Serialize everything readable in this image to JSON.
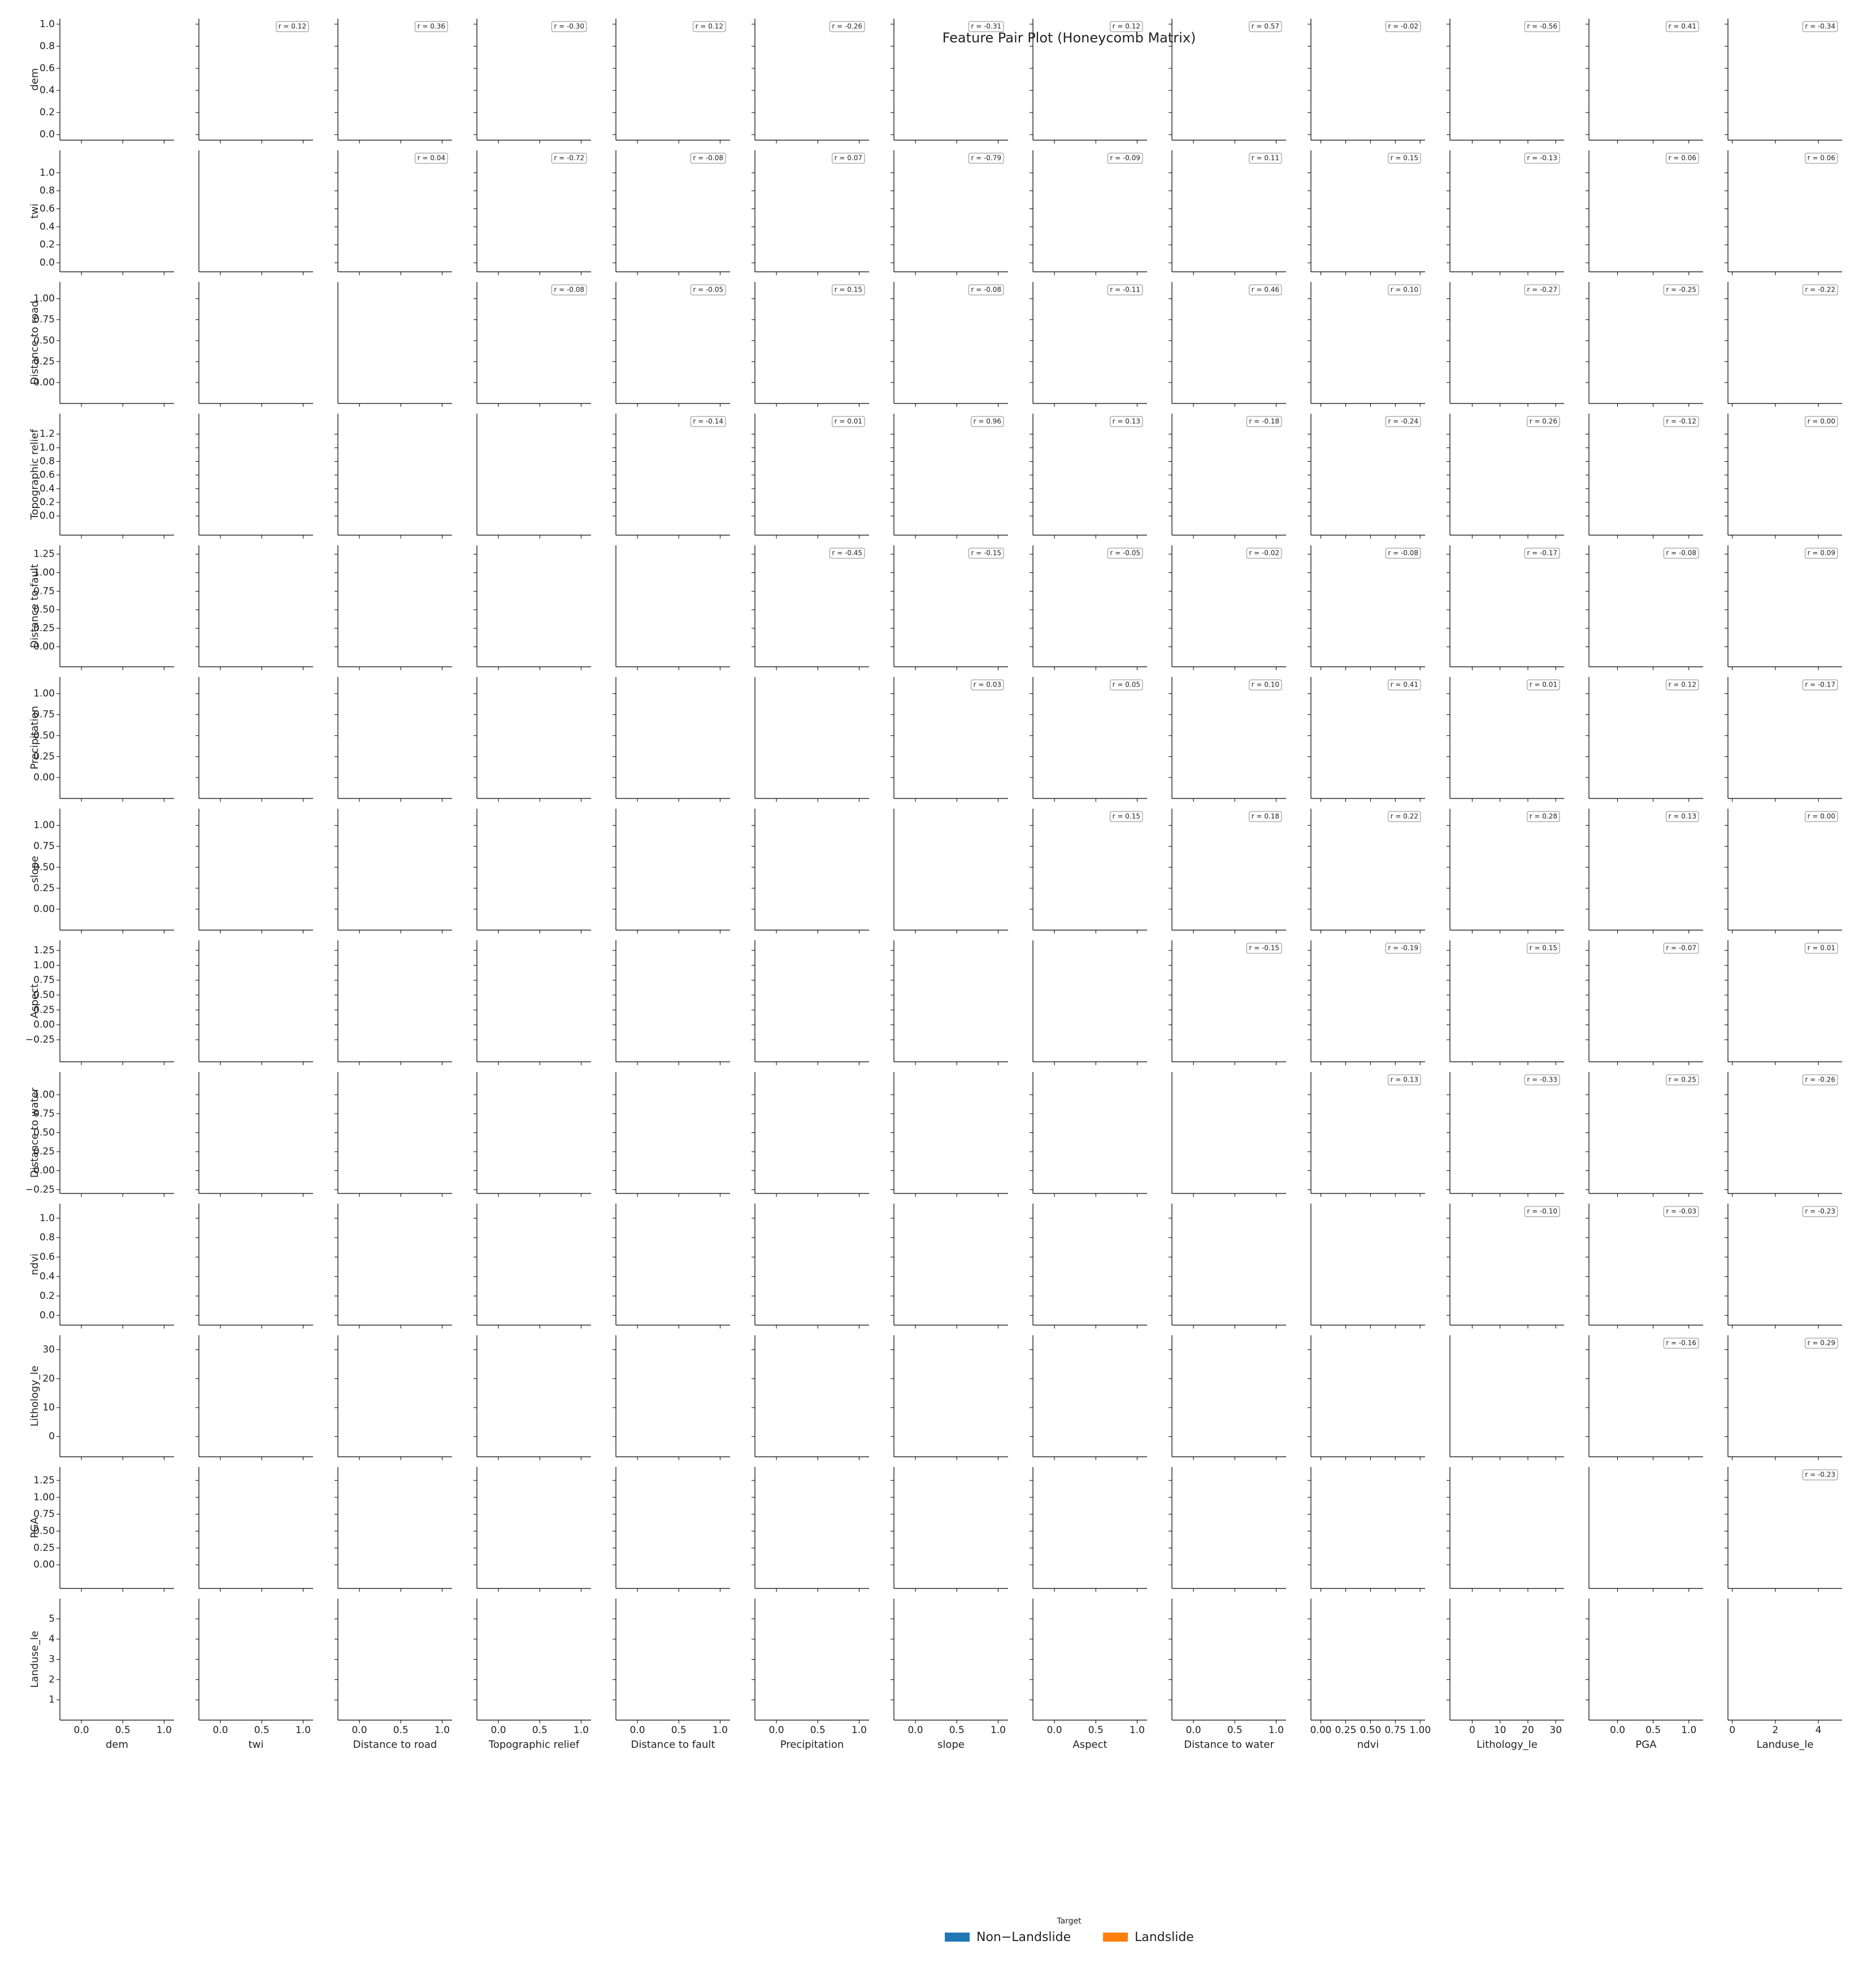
{
  "chart_data": {
    "type": "pairplot",
    "title": "Feature Pair Plot (Honeycomb Matrix)",
    "variables": [
      {
        "name": "dem",
        "ylim": [
          -0.05,
          1.05
        ],
        "xlim": [
          -0.26,
          1.12
        ],
        "yticks": [
          {
            "value": 0,
            "label": "0.0"
          },
          {
            "value": 0.2,
            "label": "0.2"
          },
          {
            "value": 0.4,
            "label": "0.4"
          },
          {
            "value": 0.6,
            "label": "0.6"
          },
          {
            "value": 0.8,
            "label": "0.8"
          },
          {
            "value": 1,
            "label": "1.0"
          }
        ],
        "xticks": [
          {
            "value": 0,
            "label": "0.0"
          },
          {
            "value": 0.5,
            "label": "0.5"
          },
          {
            "value": 1,
            "label": "1.0"
          }
        ]
      },
      {
        "name": "twi",
        "ylim": [
          -0.1,
          1.25
        ],
        "xlim": [
          -0.26,
          1.12
        ],
        "yticks": [
          {
            "value": 0,
            "label": "0.0"
          },
          {
            "value": 0.2,
            "label": "0.2"
          },
          {
            "value": 0.4,
            "label": "0.4"
          },
          {
            "value": 0.6,
            "label": "0.6"
          },
          {
            "value": 0.8,
            "label": "0.8"
          },
          {
            "value": 1,
            "label": "1.0"
          }
        ],
        "xticks": [
          {
            "value": 0,
            "label": "0.0"
          },
          {
            "value": 0.5,
            "label": "0.5"
          },
          {
            "value": 1,
            "label": "1.0"
          }
        ]
      },
      {
        "name": "Distance to road",
        "ylim": [
          -0.25,
          1.2
        ],
        "xlim": [
          -0.26,
          1.12
        ],
        "yticks": [
          {
            "value": 0,
            "label": "0.00"
          },
          {
            "value": 0.25,
            "label": "0.25"
          },
          {
            "value": 0.5,
            "label": "0.50"
          },
          {
            "value": 0.75,
            "label": "0.75"
          },
          {
            "value": 1,
            "label": "1.00"
          }
        ],
        "xticks": [
          {
            "value": 0,
            "label": "0.0"
          },
          {
            "value": 0.5,
            "label": "0.5"
          },
          {
            "value": 1,
            "label": "1.0"
          }
        ]
      },
      {
        "name": "Topographic relief",
        "ylim": [
          -0.28,
          1.5
        ],
        "xlim": [
          -0.26,
          1.12
        ],
        "yticks": [
          {
            "value": 0,
            "label": "0.0"
          },
          {
            "value": 0.2,
            "label": "0.2"
          },
          {
            "value": 0.4,
            "label": "0.4"
          },
          {
            "value": 0.6,
            "label": "0.6"
          },
          {
            "value": 0.8,
            "label": "0.8"
          },
          {
            "value": 1,
            "label": "1.0"
          },
          {
            "value": 1.2,
            "label": "1.2"
          }
        ],
        "xticks": [
          {
            "value": 0,
            "label": "0.0"
          },
          {
            "value": 0.5,
            "label": "0.5"
          },
          {
            "value": 1,
            "label": "1.0"
          }
        ]
      },
      {
        "name": "Distance to fault",
        "ylim": [
          -0.27,
          1.37
        ],
        "xlim": [
          -0.26,
          1.12
        ],
        "yticks": [
          {
            "value": 0,
            "label": "0.00"
          },
          {
            "value": 0.25,
            "label": "0.25"
          },
          {
            "value": 0.5,
            "label": "0.50"
          },
          {
            "value": 0.75,
            "label": "0.75"
          },
          {
            "value": 1,
            "label": "1.00"
          },
          {
            "value": 1.25,
            "label": "1.25"
          }
        ],
        "xticks": [
          {
            "value": 0,
            "label": "0.0"
          },
          {
            "value": 0.5,
            "label": "0.5"
          },
          {
            "value": 1,
            "label": "1.0"
          }
        ]
      },
      {
        "name": "Precipitation",
        "ylim": [
          -0.25,
          1.2
        ],
        "xlim": [
          -0.26,
          1.12
        ],
        "yticks": [
          {
            "value": 0,
            "label": "0.00"
          },
          {
            "value": 0.25,
            "label": "0.25"
          },
          {
            "value": 0.5,
            "label": "0.50"
          },
          {
            "value": 0.75,
            "label": "0.75"
          },
          {
            "value": 1,
            "label": "1.00"
          }
        ],
        "xticks": [
          {
            "value": 0,
            "label": "0.0"
          },
          {
            "value": 0.5,
            "label": "0.5"
          },
          {
            "value": 1,
            "label": "1.0"
          }
        ]
      },
      {
        "name": "slope",
        "ylim": [
          -0.25,
          1.2
        ],
        "xlim": [
          -0.26,
          1.12
        ],
        "yticks": [
          {
            "value": 0,
            "label": "0.00"
          },
          {
            "value": 0.25,
            "label": "0.25"
          },
          {
            "value": 0.5,
            "label": "0.50"
          },
          {
            "value": 0.75,
            "label": "0.75"
          },
          {
            "value": 1,
            "label": "1.00"
          }
        ],
        "xticks": [
          {
            "value": 0,
            "label": "0.0"
          },
          {
            "value": 0.5,
            "label": "0.5"
          },
          {
            "value": 1,
            "label": "1.0"
          }
        ]
      },
      {
        "name": "Aspect",
        "ylim": [
          -0.62,
          1.42
        ],
        "xlim": [
          -0.26,
          1.12
        ],
        "yticks": [
          {
            "value": -0.25,
            "label": "−0.25"
          },
          {
            "value": 0,
            "label": "0.00"
          },
          {
            "value": 0.25,
            "label": "0.25"
          },
          {
            "value": 0.5,
            "label": "0.50"
          },
          {
            "value": 0.75,
            "label": "0.75"
          },
          {
            "value": 1,
            "label": "1.00"
          },
          {
            "value": 1.25,
            "label": "1.25"
          }
        ],
        "xticks": [
          {
            "value": 0,
            "label": "0.0"
          },
          {
            "value": 0.5,
            "label": "0.5"
          },
          {
            "value": 1,
            "label": "1.0"
          }
        ]
      },
      {
        "name": "Distance to water",
        "ylim": [
          -0.3,
          1.3
        ],
        "xlim": [
          -0.26,
          1.12
        ],
        "yticks": [
          {
            "value": -0.25,
            "label": "−0.25"
          },
          {
            "value": 0,
            "label": "0.00"
          },
          {
            "value": 0.25,
            "label": "0.25"
          },
          {
            "value": 0.5,
            "label": "0.50"
          },
          {
            "value": 0.75,
            "label": "0.75"
          },
          {
            "value": 1,
            "label": "1.00"
          }
        ],
        "xticks": [
          {
            "value": 0,
            "label": "0.0"
          },
          {
            "value": 0.5,
            "label": "0.5"
          },
          {
            "value": 1,
            "label": "1.0"
          }
        ]
      },
      {
        "name": "ndvi",
        "ylim": [
          -0.1,
          1.15
        ],
        "xlim": [
          -0.1,
          1.05
        ],
        "yticks": [
          {
            "value": 0,
            "label": "0.0"
          },
          {
            "value": 0.2,
            "label": "0.2"
          },
          {
            "value": 0.4,
            "label": "0.4"
          },
          {
            "value": 0.6,
            "label": "0.6"
          },
          {
            "value": 0.8,
            "label": "0.8"
          },
          {
            "value": 1,
            "label": "1.0"
          }
        ],
        "xticks": [
          {
            "value": 0,
            "label": "0.00"
          },
          {
            "value": 0.25,
            "label": "0.25"
          },
          {
            "value": 0.5,
            "label": "0.50"
          },
          {
            "value": 0.75,
            "label": "0.75"
          },
          {
            "value": 1,
            "label": "1.00"
          }
        ]
      },
      {
        "name": "Lithology_le",
        "ylim": [
          -7,
          35
        ],
        "xlim": [
          -8,
          33
        ],
        "yticks": [
          0,
          10,
          20,
          30
        ],
        "xticks": [
          0,
          10,
          20,
          30
        ]
      },
      {
        "name": "PGA",
        "ylim": [
          -0.35,
          1.45
        ],
        "xlim": [
          -0.4,
          1.2
        ],
        "yticks": [
          {
            "value": 0,
            "label": "0.00"
          },
          {
            "value": 0.25,
            "label": "0.25"
          },
          {
            "value": 0.5,
            "label": "0.50"
          },
          {
            "value": 0.75,
            "label": "0.75"
          },
          {
            "value": 1,
            "label": "1.00"
          },
          {
            "value": 1.25,
            "label": "1.25"
          }
        ],
        "xticks": [
          {
            "value": 0,
            "label": "0.0"
          },
          {
            "value": 0.5,
            "label": "0.5"
          },
          {
            "value": 1,
            "label": "1.0"
          }
        ]
      },
      {
        "name": "Landuse_le",
        "ylim": [
          0,
          6
        ],
        "xlim": [
          -0.2,
          5.1
        ],
        "yticks": [
          1,
          2,
          3,
          4,
          5
        ],
        "xticks": [
          0,
          2,
          4
        ]
      }
    ],
    "correlation_labels": [
      [
        null,
        "r = 0.12",
        "r = 0.36",
        "r = -0.30",
        "r = 0.12",
        "r = -0.26",
        "r = -0.31",
        "r = 0.12",
        "r = 0.57",
        "r = -0.02",
        "r = -0.56",
        "r = 0.41",
        "r = -0.34"
      ],
      [
        null,
        null,
        "r = 0.04",
        "r = -0.72",
        "r = -0.08",
        "r = 0.07",
        "r = -0.79",
        "r = -0.09",
        "r = 0.11",
        "r = 0.15",
        "r = -0.13",
        "r = 0.06",
        "r = 0.06"
      ],
      [
        null,
        null,
        null,
        "r = -0.08",
        "r = -0.05",
        "r = 0.15",
        "r = -0.08",
        "r = -0.11",
        "r = 0.46",
        "r = 0.10",
        "r = -0.27",
        "r = -0.25",
        "r = -0.22"
      ],
      [
        null,
        null,
        null,
        null,
        "r = -0.14",
        "r = 0.01",
        "r = 0.96",
        "r = 0.13",
        "r = -0.18",
        "r = -0.24",
        "r = 0.26",
        "r = -0.12",
        "r = 0.00"
      ],
      [
        null,
        null,
        null,
        null,
        null,
        "r = -0.45",
        "r = -0.15",
        "r = -0.05",
        "r = -0.02",
        "r = -0.08",
        "r = -0.17",
        "r = -0.08",
        "r = 0.09"
      ],
      [
        null,
        null,
        null,
        null,
        null,
        null,
        "r = 0.03",
        "r = 0.05",
        "r = 0.10",
        "r = 0.41",
        "r = 0.01",
        "r = 0.12",
        "r = -0.17"
      ],
      [
        null,
        null,
        null,
        null,
        null,
        null,
        null,
        "r = 0.15",
        "r = 0.18",
        "r = 0.22",
        "r = 0.28",
        "r = 0.13",
        "r = 0.00"
      ],
      [
        null,
        null,
        null,
        null,
        null,
        null,
        null,
        null,
        "r = -0.15",
        "r = -0.19",
        "r = 0.15",
        "r = -0.07",
        "r = 0.01"
      ],
      [
        null,
        null,
        null,
        null,
        null,
        null,
        null,
        null,
        null,
        "r = 0.13",
        "r = -0.33",
        "r = 0.25",
        "r = -0.26"
      ],
      [
        null,
        null,
        null,
        null,
        null,
        null,
        null,
        null,
        null,
        null,
        "r = -0.10",
        "r = -0.03",
        "r = -0.23"
      ],
      [
        null,
        null,
        null,
        null,
        null,
        null,
        null,
        null,
        null,
        null,
        null,
        "r = -0.16",
        "r = 0.29"
      ],
      [
        null,
        null,
        null,
        null,
        null,
        null,
        null,
        null,
        null,
        null,
        null,
        null,
        "r = -0.23"
      ],
      [
        null,
        null,
        null,
        null,
        null,
        null,
        null,
        null,
        null,
        null,
        null,
        null,
        null
      ]
    ],
    "legend": {
      "title": "Target",
      "entries": [
        {
          "name": "Non−Landslide",
          "color": "#1f77b4"
        },
        {
          "name": "Landslide",
          "color": "#ff7f0e"
        }
      ]
    }
  }
}
